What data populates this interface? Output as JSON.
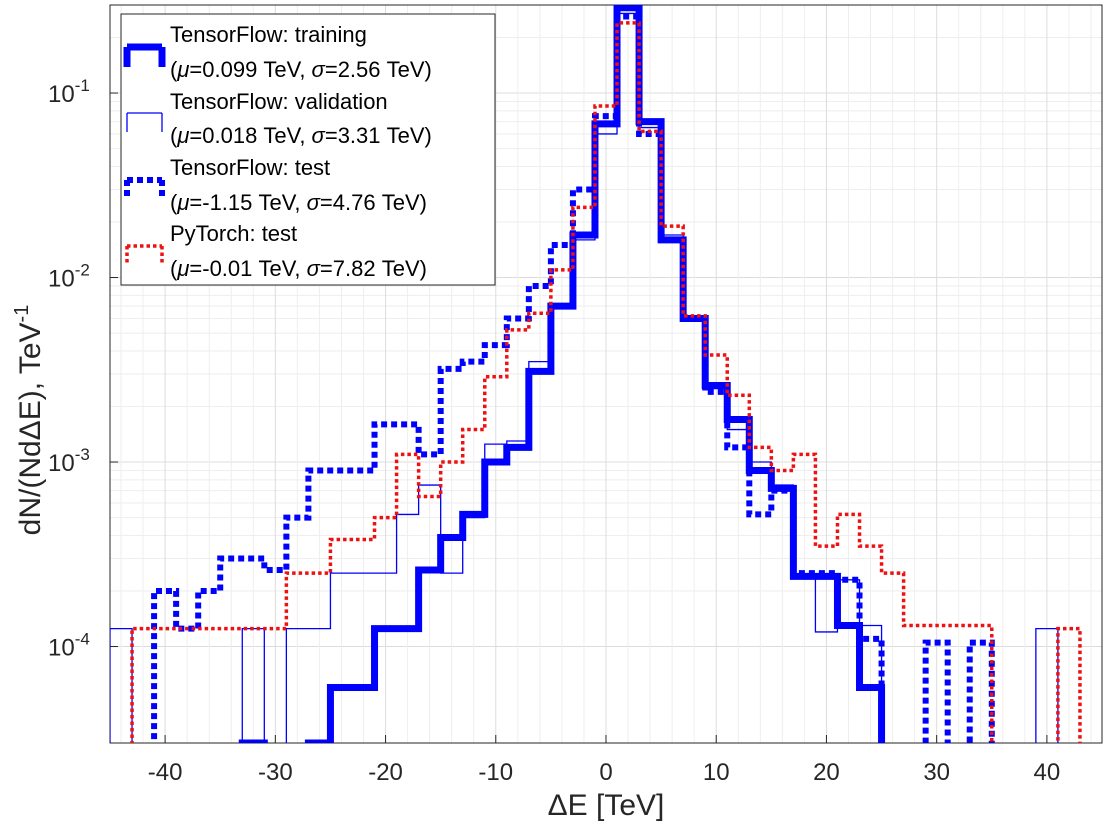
{
  "chart_data": {
    "type": "line",
    "drawstyle": "steps",
    "title": "",
    "xlabel": "ΔE [TeV]",
    "ylabel": "dN/(NdΔE), TeV",
    "ylabel_exponent": "-1",
    "xlim": [
      -45,
      45
    ],
    "ylim": [
      3e-05,
      0.3
    ],
    "yscale": "log",
    "grid": true,
    "legend_position": "top-left",
    "x_ticks": [
      -40,
      -30,
      -20,
      -10,
      0,
      10,
      20,
      30,
      40
    ],
    "x_tick_labels": [
      "-40",
      "-30",
      "-20",
      "-10",
      "0",
      "10",
      "20",
      "30",
      "40"
    ],
    "y_ticks": [
      0.0001,
      0.001,
      0.01,
      0.1
    ],
    "y_tick_labels": [
      {
        "base": "10",
        "exp": "-4"
      },
      {
        "base": "10",
        "exp": "-3"
      },
      {
        "base": "10",
        "exp": "-2"
      },
      {
        "base": "10",
        "exp": "-1"
      }
    ],
    "bin_edges": [
      -45,
      -43,
      -41,
      -39,
      -37,
      -35,
      -33,
      -31,
      -29,
      -27,
      -25,
      -23,
      -21,
      -19,
      -17,
      -15,
      -13,
      -11,
      -9,
      -7,
      -5,
      -3,
      -1,
      1,
      3,
      5,
      7,
      9,
      11,
      13,
      15,
      17,
      19,
      21,
      23,
      25,
      27,
      29,
      31,
      33,
      35,
      37,
      39,
      41,
      43,
      45
    ],
    "series": [
      {
        "name": "TensorFlow: training",
        "stats": "(μ=0.099 TeV, σ=2.56 TeV)",
        "stats_mu": "0.099 TeV",
        "stats_sigma": "2.56 TeV",
        "color": "#0000ff",
        "style": "solid-thick",
        "values": [
          0,
          0,
          0,
          0,
          0,
          0,
          3e-05,
          0,
          0,
          3e-05,
          6e-05,
          6e-05,
          0.000125,
          0.000125,
          0.00026,
          0.00039,
          0.00052,
          0.001,
          0.0012,
          0.0031,
          0.007,
          0.017,
          0.068,
          0.29,
          0.07,
          0.016,
          0.006,
          0.0026,
          0.0017,
          0.0009,
          0.00072,
          0.00024,
          0.00024,
          0.00013,
          6e-05,
          0,
          0,
          0,
          0,
          0,
          0,
          0,
          0,
          0,
          0
        ]
      },
      {
        "name": "TensorFlow: validation",
        "stats": "(μ=0.018 TeV, σ=3.31 TeV)",
        "stats_mu": "0.018 TeV",
        "stats_sigma": "3.31 TeV",
        "color": "#0000ff",
        "style": "solid-thin",
        "values": [
          0.000125,
          0,
          0,
          0,
          0,
          0,
          0.000125,
          0,
          0.000125,
          0.000125,
          0.00025,
          0.00025,
          0.00025,
          0.00052,
          0.00075,
          0.00025,
          0.0005,
          0.00125,
          0.0013,
          0.0035,
          0.007,
          0.016,
          0.06,
          0.27,
          0.065,
          0.017,
          0.0062,
          0.0025,
          0.0015,
          0.001,
          0.00075,
          0.00024,
          0.00012,
          0.00023,
          0.00013,
          0,
          0,
          0,
          0,
          0,
          0,
          0,
          0.000125,
          0,
          0
        ]
      },
      {
        "name": "TensorFlow: test",
        "stats": "(μ=-1.15 TeV, σ=4.76 TeV)",
        "stats_mu": "-1.15 TeV",
        "stats_sigma": "4.76 TeV",
        "color": "#0000ff",
        "style": "dotted-thick",
        "values": [
          0,
          0,
          0.0002,
          0.000125,
          0.0002,
          0.0003,
          0.0003,
          0.00026,
          0.0005,
          0.0009,
          0.0009,
          0.0009,
          0.0016,
          0.0016,
          0.0011,
          0.0032,
          0.0035,
          0.0043,
          0.006,
          0.009,
          0.015,
          0.03,
          0.075,
          0.26,
          0.06,
          0.016,
          0.006,
          0.0024,
          0.0012,
          0.00052,
          0.0007,
          0.00025,
          0.00025,
          0.00023,
          0.00011,
          0,
          0,
          0.000105,
          0,
          0.000105,
          0,
          0,
          0,
          0,
          0
        ]
      },
      {
        "name": "PyTorch: test",
        "stats": "(μ=-0.01 TeV, σ=7.82 TeV)",
        "stats_mu": "-0.01 TeV",
        "stats_sigma": "7.82 TeV",
        "color": "#ee1111",
        "style": "dotted",
        "values": [
          0,
          0.000125,
          0.000125,
          0.000125,
          0.000125,
          0.000125,
          0.000125,
          0.000125,
          0.00025,
          0.00025,
          0.00038,
          0.00038,
          0.0005,
          0.0011,
          0.00065,
          0.001,
          0.0015,
          0.0029,
          0.0052,
          0.0064,
          0.011,
          0.024,
          0.085,
          0.24,
          0.062,
          0.019,
          0.0062,
          0.0038,
          0.0023,
          0.0012,
          0.0009,
          0.0011,
          0.00035,
          0.00052,
          0.00035,
          0.00025,
          0.00013,
          0.00013,
          0.00013,
          0.00013,
          0,
          0,
          0,
          0.000125,
          0
        ]
      }
    ]
  }
}
